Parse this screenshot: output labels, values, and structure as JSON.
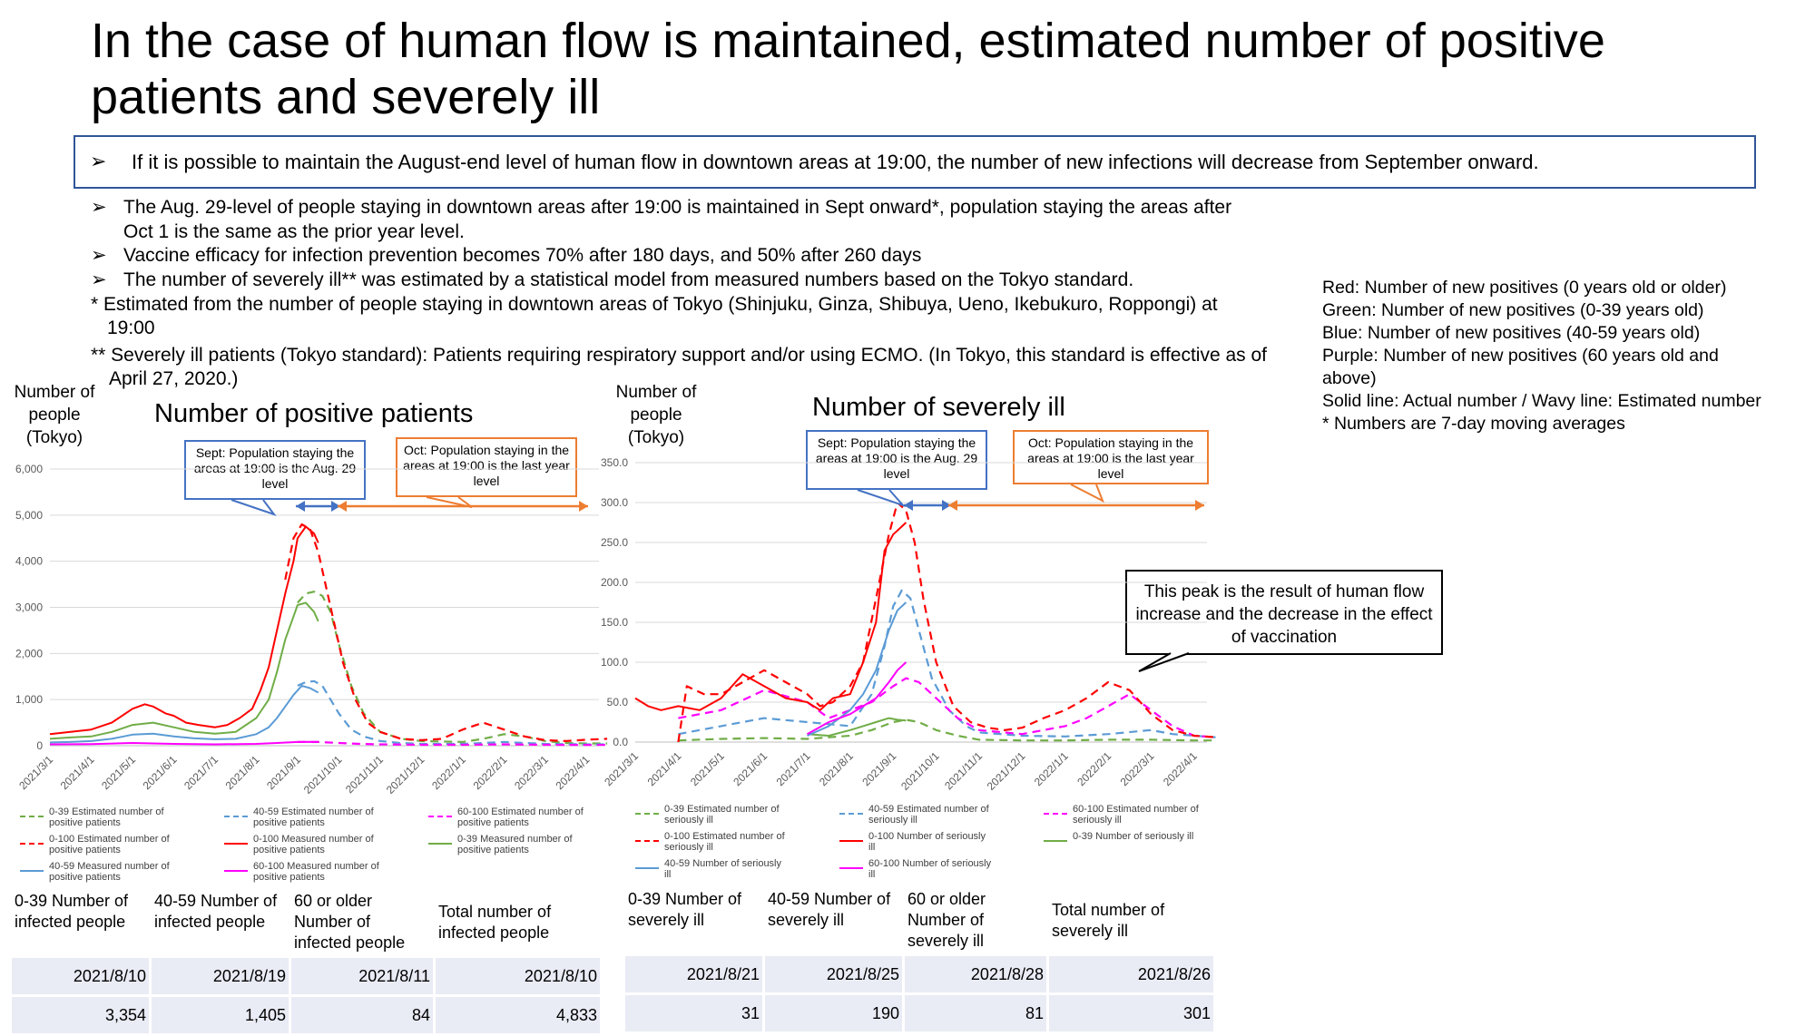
{
  "title": "In the case of human flow is maintained, estimated number of positive patients and severely ill",
  "headline": "If it is possible to maintain the August-end level of human flow in downtown areas at 19:00, the number of new infections will decrease from September onward.",
  "bullets": [
    "The Aug. 29-level of people staying in downtown areas after 19:00 is maintained in Sept onward*, population staying the areas after Oct 1 is the same as the prior year level.",
    "Vaccine efficacy for infection prevention becomes 70% after 180 days, and 50% after 260 days",
    "The number of severely ill** was estimated by a statistical model from measured numbers based on the Tokyo standard."
  ],
  "footnotes": [
    "* Estimated from the number of people staying in downtown areas of Tokyo (Shinjuku, Ginza, Shibuya, Ueno, Ikebukuro, Roppongi) at 19:00",
    "** Severely ill patients (Tokyo standard): Patients requiring respiratory support and/or using ECMO. (In Tokyo, this standard is effective as of April 27, 2020.)"
  ],
  "legend_notes": [
    "Red: Number of new positives (0 years old or older)",
    "Green: Number of new positives (0-39 years old)",
    "Blue: Number of new positives (40-59 years old)",
    "Purple: Number of new positives (60 years old and above)",
    "Solid line: Actual number / Wavy line: Estimated number",
    "* Numbers are 7-day moving averages"
  ],
  "colors": {
    "red": "#ff0000",
    "green": "#70ad47",
    "blue": "#5b9bd5",
    "purple": "#ff00ff",
    "callout_blue": "#4472c4",
    "callout_orange": "#ed7d31",
    "box_border": "#2f5597"
  },
  "callouts": {
    "sept": "Sept: Population staying the areas at 19:00 is the Aug. 29 level",
    "oct": "Oct: Population staying in the areas at 19:00 is the last year level",
    "peak": "This peak is the result of human flow increase and the decrease in the effect of vaccination"
  },
  "chart_data": [
    {
      "type": "line",
      "title": "Number of positive patients",
      "ylabel": "Number of people (Tokyo)",
      "ylim": [
        0,
        6000
      ],
      "yticks": [
        "0",
        "1,000",
        "2,000",
        "3,000",
        "4,000",
        "5,000",
        "6,000"
      ],
      "x_ticks": [
        "2021/3/1",
        "2021/4/1",
        "2021/5/1",
        "2021/6/1",
        "2021/7/1",
        "2021/8/1",
        "2021/9/1",
        "2021/10/1",
        "2021/11/1",
        "2021/12/1",
        "2022/1/1",
        "2022/2/1",
        "2022/3/1",
        "2022/4/1"
      ],
      "series": [
        {
          "name": "0-39 Estimated number of positive patients",
          "color": "green",
          "dash": true,
          "x": [
            6.0,
            6.2,
            6.4,
            6.6,
            6.8,
            7.0,
            7.3,
            7.6,
            8.0,
            8.5,
            9,
            10,
            10.5,
            11,
            11.5,
            12,
            12.5,
            13,
            13.5
          ],
          "values": [
            3100,
            3300,
            3340,
            3250,
            2900,
            2200,
            1300,
            700,
            300,
            150,
            100,
            80,
            150,
            250,
            200,
            100,
            60,
            50,
            50
          ]
        },
        {
          "name": "40-59 Estimated number of positive patients",
          "color": "blue",
          "dash": true,
          "x": [
            6.0,
            6.2,
            6.4,
            6.6,
            6.8,
            7.0,
            7.3,
            7.6,
            8.0,
            8.5,
            9,
            10,
            11,
            12,
            13,
            13.5
          ],
          "values": [
            1300,
            1380,
            1400,
            1300,
            1000,
            700,
            350,
            200,
            100,
            60,
            40,
            40,
            80,
            40,
            30,
            30
          ]
        },
        {
          "name": "60-100 Estimated number of positive patients",
          "color": "purple",
          "dash": true,
          "x": [
            6.0,
            6.5,
            7,
            7.5,
            8,
            9,
            10,
            11,
            12,
            13,
            13.5
          ],
          "values": [
            80,
            80,
            60,
            40,
            30,
            20,
            20,
            30,
            20,
            15,
            15
          ]
        },
        {
          "name": "0-100 Estimated number of positive patients",
          "color": "red",
          "dash": true,
          "x": [
            5.7,
            5.9,
            6.1,
            6.3,
            6.5,
            6.7,
            6.9,
            7.1,
            7.4,
            7.7,
            8.0,
            8.5,
            9,
            9.5,
            10,
            10.5,
            11,
            11.5,
            12,
            12.5,
            13,
            13.5
          ],
          "values": [
            3600,
            4500,
            4800,
            4700,
            4200,
            3400,
            2600,
            1800,
            1000,
            500,
            300,
            150,
            120,
            150,
            350,
            500,
            350,
            200,
            120,
            100,
            130,
            150
          ]
        },
        {
          "name": "0-100 Measured number of positive patients",
          "color": "red",
          "dash": false,
          "x": [
            0,
            0.5,
            1,
            1.5,
            2,
            2.3,
            2.5,
            2.8,
            3,
            3.3,
            3.6,
            4,
            4.3,
            4.6,
            4.9,
            5.1,
            5.3,
            5.5,
            5.7,
            5.9,
            6.0,
            6.2,
            6.4,
            6.5
          ],
          "values": [
            250,
            300,
            350,
            500,
            800,
            900,
            850,
            700,
            650,
            500,
            450,
            400,
            450,
            600,
            800,
            1200,
            1700,
            2500,
            3300,
            4000,
            4500,
            4750,
            4600,
            4400
          ]
        },
        {
          "name": "0-39 Measured number of positive patients",
          "color": "green",
          "dash": false,
          "x": [
            0,
            0.5,
            1,
            1.5,
            2,
            2.5,
            3,
            3.5,
            4,
            4.5,
            5,
            5.3,
            5.5,
            5.7,
            5.9,
            6.0,
            6.2,
            6.4,
            6.5
          ],
          "values": [
            150,
            180,
            200,
            300,
            450,
            500,
            400,
            300,
            260,
            300,
            600,
            1000,
            1600,
            2300,
            2800,
            3050,
            3100,
            2900,
            2700
          ]
        },
        {
          "name": "40-59 Measured number of positive patients",
          "color": "blue",
          "dash": false,
          "x": [
            0,
            0.5,
            1,
            1.5,
            2,
            2.5,
            3,
            3.5,
            4,
            4.5,
            5,
            5.3,
            5.5,
            5.7,
            5.9,
            6.1,
            6.3,
            6.5
          ],
          "values": [
            70,
            80,
            100,
            150,
            240,
            260,
            200,
            160,
            140,
            150,
            250,
            400,
            600,
            850,
            1100,
            1300,
            1250,
            1150
          ]
        },
        {
          "name": "60-100 Measured number of positive patients",
          "color": "purple",
          "dash": false,
          "x": [
            0,
            1,
            2,
            3,
            4,
            5,
            5.5,
            6,
            6.3,
            6.5
          ],
          "values": [
            30,
            35,
            60,
            40,
            30,
            40,
            60,
            80,
            84,
            80
          ]
        }
      ]
    },
    {
      "type": "line",
      "title": "Number of severely ill",
      "ylabel": "Number of people (Tokyo)",
      "ylim": [
        0,
        350
      ],
      "yticks": [
        "0.0",
        "50.0",
        "100.0",
        "150.0",
        "200.0",
        "250.0",
        "300.0",
        "350.0"
      ],
      "x_ticks": [
        "2021/3/1",
        "2021/4/1",
        "2021/5/1",
        "2021/6/1",
        "2021/7/1",
        "2021/8/1",
        "2021/9/1",
        "2021/10/1",
        "2021/11/1",
        "2021/12/1",
        "2022/1/1",
        "2022/2/1",
        "2022/3/1",
        "2022/4/1"
      ],
      "series": [
        {
          "name": "0-39 Estimated number of seriously ill",
          "color": "green",
          "dash": true,
          "x": [
            1,
            2,
            3,
            4,
            5,
            5.5,
            6,
            6.3,
            6.6,
            7,
            7.5,
            8,
            9,
            10,
            11,
            12,
            13,
            13.5
          ],
          "values": [
            2,
            4,
            5,
            4,
            8,
            15,
            25,
            28,
            25,
            15,
            8,
            3,
            2,
            2,
            3,
            3,
            2,
            2
          ]
        },
        {
          "name": "40-59 Estimated number of seriously ill",
          "color": "blue",
          "dash": true,
          "x": [
            1,
            2,
            3,
            4,
            5,
            5.5,
            5.8,
            6.0,
            6.2,
            6.4,
            6.6,
            6.9,
            7.3,
            7.7,
            8,
            9,
            10,
            11,
            12,
            12.5,
            13,
            13.5
          ],
          "values": [
            10,
            20,
            30,
            25,
            20,
            60,
            120,
            170,
            190,
            180,
            140,
            80,
            40,
            20,
            12,
            8,
            7,
            10,
            15,
            10,
            8,
            6
          ]
        },
        {
          "name": "60-100 Estimated number of seriously ill",
          "color": "purple",
          "dash": true,
          "x": [
            1,
            2,
            3,
            4,
            4.5,
            5,
            5.5,
            6,
            6.3,
            6.6,
            7,
            7.5,
            8,
            9,
            10,
            10.5,
            11,
            11.5,
            12,
            12.5,
            13,
            13.5
          ],
          "values": [
            30,
            40,
            65,
            50,
            30,
            40,
            50,
            70,
            80,
            75,
            55,
            30,
            15,
            10,
            20,
            30,
            45,
            60,
            40,
            20,
            8,
            6
          ]
        },
        {
          "name": "0-100 Estimated number of seriously ill",
          "color": "red",
          "dash": true,
          "x": [
            1,
            1.2,
            1.6,
            2,
            2.5,
            3,
            3.5,
            4,
            4.3,
            4.6,
            5,
            5.3,
            5.6,
            5.9,
            6.1,
            6.3,
            6.5,
            6.7,
            7,
            7.4,
            7.8,
            8.2,
            8.6,
            9,
            9.5,
            10,
            10.5,
            11,
            11.5,
            12,
            12.5,
            13,
            13.5
          ],
          "values": [
            0,
            70,
            60,
            60,
            75,
            90,
            75,
            60,
            45,
            50,
            70,
            100,
            180,
            260,
            300,
            290,
            250,
            180,
            100,
            45,
            25,
            18,
            15,
            18,
            30,
            40,
            55,
            75,
            65,
            35,
            15,
            8,
            6
          ]
        },
        {
          "name": "0-100 Number of seriously ill",
          "color": "red",
          "dash": false,
          "x": [
            0,
            0.3,
            0.6,
            1,
            1.5,
            2,
            2.5,
            3,
            3.5,
            4,
            4.3,
            4.6,
            5,
            5.3,
            5.6,
            5.8,
            6.0,
            6.2,
            6.3
          ],
          "values": [
            55,
            45,
            40,
            45,
            40,
            55,
            85,
            70,
            55,
            50,
            40,
            55,
            60,
            100,
            150,
            240,
            260,
            270,
            275
          ]
        },
        {
          "name": "0-39 Number of seriously ill",
          "color": "green",
          "dash": false,
          "x": [
            4,
            4.5,
            5,
            5.3,
            5.6,
            5.9,
            6.1,
            6.3
          ],
          "values": [
            10,
            8,
            15,
            20,
            25,
            30,
            28,
            27
          ]
        },
        {
          "name": "40-59 Number of seriously ill",
          "color": "blue",
          "dash": false,
          "x": [
            4,
            4.5,
            5,
            5.3,
            5.6,
            5.9,
            6.1,
            6.3
          ],
          "values": [
            8,
            20,
            40,
            60,
            90,
            140,
            165,
            175
          ]
        },
        {
          "name": "60-100 Number of seriously ill",
          "color": "purple",
          "dash": false,
          "x": [
            4,
            4.5,
            5,
            5.3,
            5.6,
            5.9,
            6.1,
            6.3
          ],
          "values": [
            10,
            25,
            35,
            45,
            55,
            75,
            90,
            100
          ]
        }
      ]
    }
  ],
  "legend_left": [
    {
      "label": "0-39 Estimated number of positive patients",
      "color": "green",
      "dash": true
    },
    {
      "label": "40-59 Estimated number of positive patients",
      "color": "blue",
      "dash": true
    },
    {
      "label": "60-100 Estimated number of positive patients",
      "color": "purple",
      "dash": true
    },
    {
      "label": "0-100 Estimated number of positive patients",
      "color": "red",
      "dash": true
    },
    {
      "label": "0-100 Measured number of positive patients",
      "color": "red",
      "dash": false
    },
    {
      "label": "0-39 Measured number of positive patients",
      "color": "green",
      "dash": false
    },
    {
      "label": "40-59 Measured number of positive patients",
      "color": "blue",
      "dash": false
    },
    {
      "label": "60-100 Measured number of positive patients",
      "color": "purple",
      "dash": false
    }
  ],
  "legend_right": [
    {
      "label": "0-39 Estimated number of seriously ill",
      "color": "green",
      "dash": true
    },
    {
      "label": "40-59 Estimated number of seriously ill",
      "color": "blue",
      "dash": true
    },
    {
      "label": "60-100 Estimated number of seriously ill",
      "color": "purple",
      "dash": true
    },
    {
      "label": "0-100 Estimated number of seriously ill",
      "color": "red",
      "dash": true
    },
    {
      "label": "0-100 Number of seriously ill",
      "color": "red",
      "dash": false
    },
    {
      "label": "0-39 Number of seriously ill",
      "color": "green",
      "dash": false
    },
    {
      "label": "40-59 Number of seriously ill",
      "color": "blue",
      "dash": false
    },
    {
      "label": "60-100 Number of seriously ill",
      "color": "purple",
      "dash": false
    }
  ],
  "table_infected": {
    "headers": [
      "0-39 Number of infected people",
      "40-59 Number of infected people",
      "60 or older Number of infected people",
      "Total number of infected people"
    ],
    "dates": [
      "2021/8/10",
      "2021/8/19",
      "2021/8/11",
      "2021/8/10"
    ],
    "values": [
      "3,354",
      "1,405",
      "84",
      "4,833"
    ]
  },
  "table_severe": {
    "headers": [
      "0-39 Number of severely ill",
      "40-59 Number of severely ill",
      "60 or older Number of severely ill",
      "Total number of severely ill"
    ],
    "dates": [
      "2021/8/21",
      "2021/8/25",
      "2021/8/28",
      "2021/8/26"
    ],
    "values": [
      "31",
      "190",
      "81",
      "301"
    ]
  }
}
